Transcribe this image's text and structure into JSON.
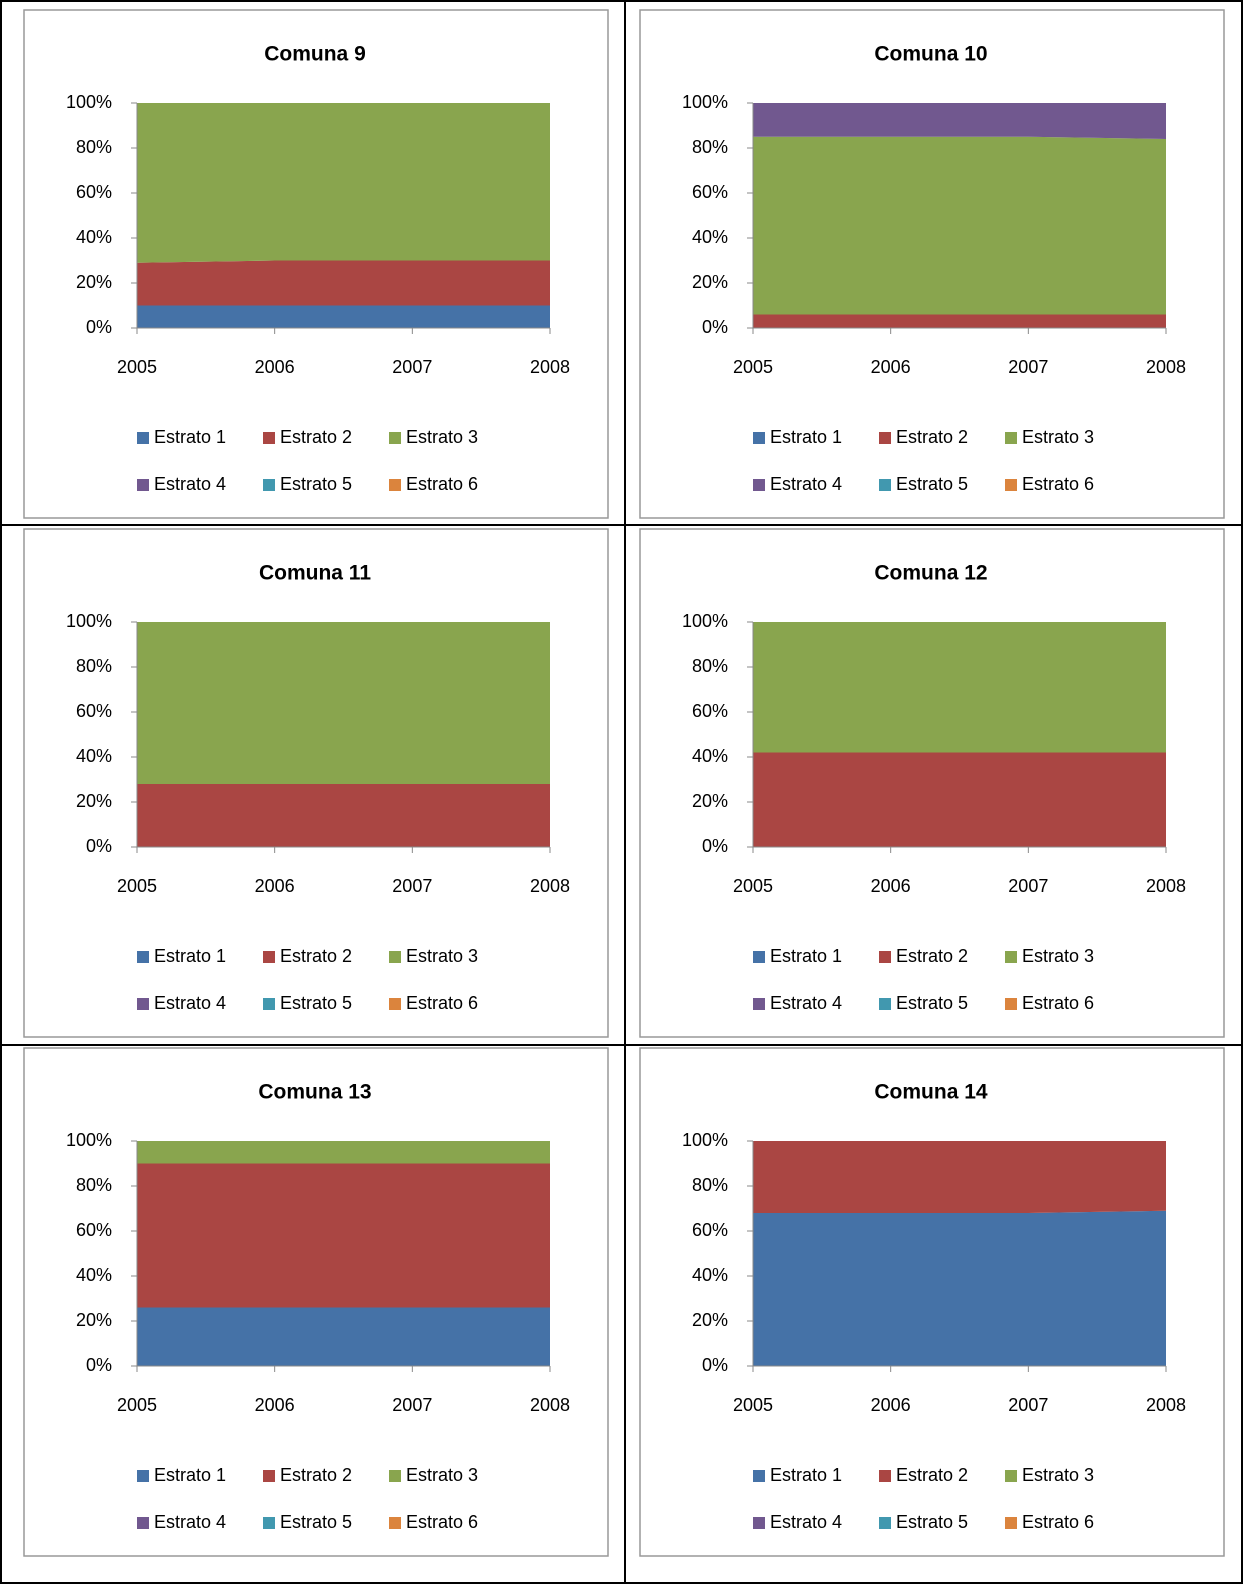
{
  "chart_data": [
    {
      "type": "area",
      "title": "Comuna 9",
      "x": [
        2005,
        2006,
        2007,
        2008
      ],
      "xlim": [
        2005,
        2008
      ],
      "xticks": [
        2005,
        2006,
        2007,
        2008
      ],
      "ylim": [
        0,
        100
      ],
      "yticks": [
        {
          "value": 0,
          "label": "0%"
        },
        {
          "value": 20,
          "label": "20%"
        },
        {
          "value": 40,
          "label": "40%"
        },
        {
          "value": 60,
          "label": "60%"
        },
        {
          "value": 80,
          "label": "80%"
        },
        {
          "value": 100,
          "label": "100%"
        }
      ],
      "series": [
        {
          "name": "Estrato 1",
          "color": "#4572a7",
          "values": [
            10,
            10,
            10,
            10
          ]
        },
        {
          "name": "Estrato 2",
          "color": "#aa4643",
          "values": [
            19,
            20,
            20,
            20
          ]
        },
        {
          "name": "Estrato 3",
          "color": "#89a54e",
          "values": [
            71,
            70,
            70,
            70
          ]
        },
        {
          "name": "Estrato 4",
          "color": "#71588f",
          "values": [
            0,
            0,
            0,
            0
          ]
        },
        {
          "name": "Estrato 5",
          "color": "#4198af",
          "values": [
            0,
            0,
            0,
            0
          ]
        },
        {
          "name": "Estrato 6",
          "color": "#db843d",
          "values": [
            0,
            0,
            0,
            0
          ]
        }
      ]
    },
    {
      "type": "area",
      "title": "Comuna 10",
      "x": [
        2005,
        2006,
        2007,
        2008
      ],
      "xlim": [
        2005,
        2008
      ],
      "xticks": [
        2005,
        2006,
        2007,
        2008
      ],
      "ylim": [
        0,
        100
      ],
      "yticks": [
        {
          "value": 0,
          "label": "0%"
        },
        {
          "value": 20,
          "label": "20%"
        },
        {
          "value": 40,
          "label": "40%"
        },
        {
          "value": 60,
          "label": "60%"
        },
        {
          "value": 80,
          "label": "80%"
        },
        {
          "value": 100,
          "label": "100%"
        }
      ],
      "series": [
        {
          "name": "Estrato 1",
          "color": "#4572a7",
          "values": [
            0,
            0,
            0,
            0
          ]
        },
        {
          "name": "Estrato 2",
          "color": "#aa4643",
          "values": [
            6,
            6,
            6,
            6
          ]
        },
        {
          "name": "Estrato 3",
          "color": "#89a54e",
          "values": [
            79,
            79,
            79,
            78
          ]
        },
        {
          "name": "Estrato 4",
          "color": "#71588f",
          "values": [
            15,
            15,
            15,
            16
          ]
        },
        {
          "name": "Estrato 5",
          "color": "#4198af",
          "values": [
            0,
            0,
            0,
            0
          ]
        },
        {
          "name": "Estrato 6",
          "color": "#db843d",
          "values": [
            0,
            0,
            0,
            0
          ]
        }
      ]
    },
    {
      "type": "area",
      "title": "Comuna 11",
      "x": [
        2005,
        2006,
        2007,
        2008
      ],
      "xlim": [
        2005,
        2008
      ],
      "xticks": [
        2005,
        2006,
        2007,
        2008
      ],
      "ylim": [
        0,
        100
      ],
      "yticks": [
        {
          "value": 0,
          "label": "0%"
        },
        {
          "value": 20,
          "label": "20%"
        },
        {
          "value": 40,
          "label": "40%"
        },
        {
          "value": 60,
          "label": "60%"
        },
        {
          "value": 80,
          "label": "80%"
        },
        {
          "value": 100,
          "label": "100%"
        }
      ],
      "series": [
        {
          "name": "Estrato 1",
          "color": "#4572a7",
          "values": [
            0,
            0,
            0,
            0
          ]
        },
        {
          "name": "Estrato 2",
          "color": "#aa4643",
          "values": [
            28,
            28,
            28,
            28
          ]
        },
        {
          "name": "Estrato 3",
          "color": "#89a54e",
          "values": [
            72,
            72,
            72,
            72
          ]
        },
        {
          "name": "Estrato 4",
          "color": "#71588f",
          "values": [
            0,
            0,
            0,
            0
          ]
        },
        {
          "name": "Estrato 5",
          "color": "#4198af",
          "values": [
            0,
            0,
            0,
            0
          ]
        },
        {
          "name": "Estrato 6",
          "color": "#db843d",
          "values": [
            0,
            0,
            0,
            0
          ]
        }
      ]
    },
    {
      "type": "area",
      "title": "Comuna 12",
      "x": [
        2005,
        2006,
        2007,
        2008
      ],
      "xlim": [
        2005,
        2008
      ],
      "xticks": [
        2005,
        2006,
        2007,
        2008
      ],
      "ylim": [
        0,
        100
      ],
      "yticks": [
        {
          "value": 0,
          "label": "0%"
        },
        {
          "value": 20,
          "label": "20%"
        },
        {
          "value": 40,
          "label": "40%"
        },
        {
          "value": 60,
          "label": "60%"
        },
        {
          "value": 80,
          "label": "80%"
        },
        {
          "value": 100,
          "label": "100%"
        }
      ],
      "series": [
        {
          "name": "Estrato 1",
          "color": "#4572a7",
          "values": [
            0,
            0,
            0,
            0
          ]
        },
        {
          "name": "Estrato 2",
          "color": "#aa4643",
          "values": [
            42,
            42,
            42,
            42
          ]
        },
        {
          "name": "Estrato 3",
          "color": "#89a54e",
          "values": [
            58,
            58,
            58,
            58
          ]
        },
        {
          "name": "Estrato 4",
          "color": "#71588f",
          "values": [
            0,
            0,
            0,
            0
          ]
        },
        {
          "name": "Estrato 5",
          "color": "#4198af",
          "values": [
            0,
            0,
            0,
            0
          ]
        },
        {
          "name": "Estrato 6",
          "color": "#db843d",
          "values": [
            0,
            0,
            0,
            0
          ]
        }
      ]
    },
    {
      "type": "area",
      "title": "Comuna 13",
      "x": [
        2005,
        2006,
        2007,
        2008
      ],
      "xlim": [
        2005,
        2008
      ],
      "xticks": [
        2005,
        2006,
        2007,
        2008
      ],
      "ylim": [
        0,
        100
      ],
      "yticks": [
        {
          "value": 0,
          "label": "0%"
        },
        {
          "value": 20,
          "label": "20%"
        },
        {
          "value": 40,
          "label": "40%"
        },
        {
          "value": 60,
          "label": "60%"
        },
        {
          "value": 80,
          "label": "80%"
        },
        {
          "value": 100,
          "label": "100%"
        }
      ],
      "series": [
        {
          "name": "Estrato 1",
          "color": "#4572a7",
          "values": [
            26,
            26,
            26,
            26
          ]
        },
        {
          "name": "Estrato 2",
          "color": "#aa4643",
          "values": [
            64,
            64,
            64,
            64
          ]
        },
        {
          "name": "Estrato 3",
          "color": "#89a54e",
          "values": [
            10,
            10,
            10,
            10
          ]
        },
        {
          "name": "Estrato 4",
          "color": "#71588f",
          "values": [
            0,
            0,
            0,
            0
          ]
        },
        {
          "name": "Estrato 5",
          "color": "#4198af",
          "values": [
            0,
            0,
            0,
            0
          ]
        },
        {
          "name": "Estrato 6",
          "color": "#db843d",
          "values": [
            0,
            0,
            0,
            0
          ]
        }
      ]
    },
    {
      "type": "area",
      "title": "Comuna 14",
      "x": [
        2005,
        2006,
        2007,
        2008
      ],
      "xlim": [
        2005,
        2008
      ],
      "xticks": [
        2005,
        2006,
        2007,
        2008
      ],
      "ylim": [
        0,
        100
      ],
      "yticks": [
        {
          "value": 0,
          "label": "0%"
        },
        {
          "value": 20,
          "label": "20%"
        },
        {
          "value": 40,
          "label": "40%"
        },
        {
          "value": 60,
          "label": "60%"
        },
        {
          "value": 80,
          "label": "80%"
        },
        {
          "value": 100,
          "label": "100%"
        }
      ],
      "series": [
        {
          "name": "Estrato 1",
          "color": "#4572a7",
          "values": [
            68,
            68,
            68,
            69
          ]
        },
        {
          "name": "Estrato 2",
          "color": "#aa4643",
          "values": [
            32,
            32,
            32,
            31
          ]
        },
        {
          "name": "Estrato 3",
          "color": "#89a54e",
          "values": [
            0,
            0,
            0,
            0
          ]
        },
        {
          "name": "Estrato 4",
          "color": "#71588f",
          "values": [
            0,
            0,
            0,
            0
          ]
        },
        {
          "name": "Estrato 5",
          "color": "#4198af",
          "values": [
            0,
            0,
            0,
            0
          ]
        },
        {
          "name": "Estrato 6",
          "color": "#db843d",
          "values": [
            0,
            0,
            0,
            0
          ]
        }
      ]
    }
  ]
}
